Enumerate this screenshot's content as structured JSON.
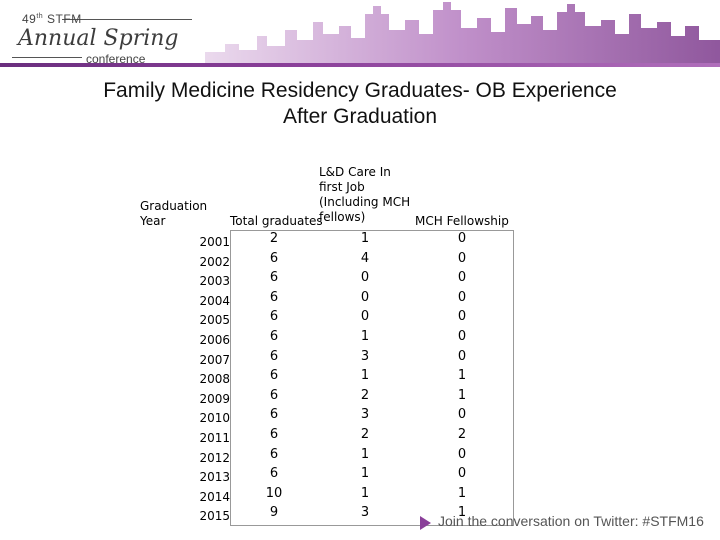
{
  "header": {
    "edition": "49",
    "edition_suffix": "th",
    "org": "STFM",
    "script_title": "Annual Spring",
    "subtitle": "conference"
  },
  "slide": {
    "title_line1": "Family Medicine Residency Graduates- OB Experience",
    "title_line2": "After Graduation"
  },
  "table": {
    "headers": {
      "year_line1": "Graduation",
      "year_line2": "Year",
      "total": "Total graduates",
      "ld_line1": "L&D Care In",
      "ld_line2": "first Job",
      "ld_line3": "(Including MCH",
      "ld_line4": "fellows)",
      "mch": "MCH Fellowship"
    },
    "rows": [
      {
        "year": "2001",
        "total": "2",
        "ld": "1",
        "mch": "0"
      },
      {
        "year": "2002",
        "total": "6",
        "ld": "4",
        "mch": "0"
      },
      {
        "year": "2003",
        "total": "6",
        "ld": "0",
        "mch": "0"
      },
      {
        "year": "2004",
        "total": "6",
        "ld": "0",
        "mch": "0"
      },
      {
        "year": "2005",
        "total": "6",
        "ld": "0",
        "mch": "0"
      },
      {
        "year": "2006",
        "total": "6",
        "ld": "1",
        "mch": "0"
      },
      {
        "year": "2007",
        "total": "6",
        "ld": "3",
        "mch": "0"
      },
      {
        "year": "2008",
        "total": "6",
        "ld": "1",
        "mch": "1"
      },
      {
        "year": "2009",
        "total": "6",
        "ld": "2",
        "mch": "1"
      },
      {
        "year": "2010",
        "total": "6",
        "ld": "3",
        "mch": "0"
      },
      {
        "year": "2011",
        "total": "6",
        "ld": "2",
        "mch": "2"
      },
      {
        "year": "2012",
        "total": "6",
        "ld": "1",
        "mch": "0"
      },
      {
        "year": "2013",
        "total": "6",
        "ld": "1",
        "mch": "0"
      },
      {
        "year": "2014",
        "total": "10",
        "ld": "1",
        "mch": "1"
      },
      {
        "year": "2015",
        "total": "9",
        "ld": "3",
        "mch": "1"
      }
    ]
  },
  "footer": {
    "text": "Join the conversation on Twitter: #STFM16"
  },
  "colors": {
    "brand_purple": "#6a2e7e",
    "accent_pink": "#b06fbb"
  }
}
